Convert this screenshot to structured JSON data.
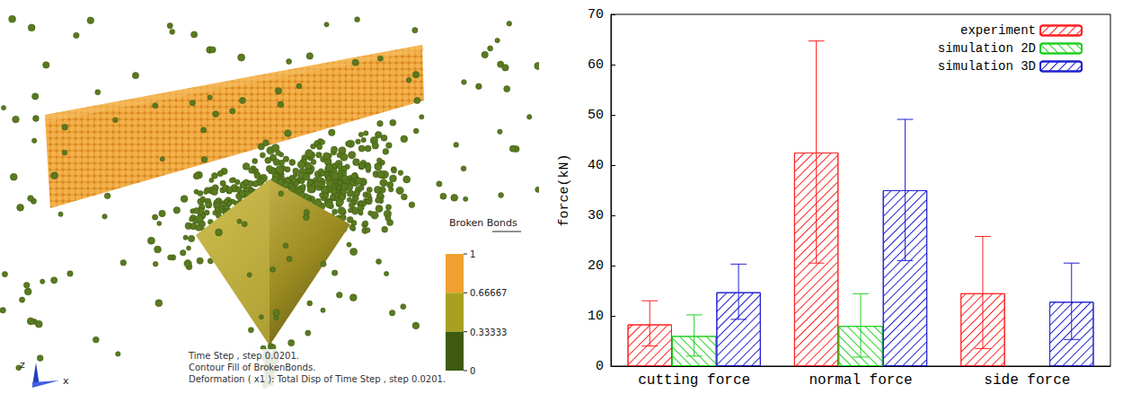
{
  "chart_data": {
    "type": "bar",
    "categories": [
      "cutting force",
      "normal force",
      "side force"
    ],
    "y_label": "force(kN)",
    "ylim": [
      0,
      70
    ],
    "yticks": [
      0,
      10,
      20,
      30,
      40,
      50,
      60,
      70
    ],
    "legend": "upper right",
    "series": [
      {
        "name": "experiment",
        "color": "#ff2020",
        "values": [
          8.3,
          42.5,
          14.5
        ],
        "error_low": [
          4.0,
          20.5,
          3.5
        ],
        "error_high": [
          13.0,
          64.7,
          25.8
        ]
      },
      {
        "name": "simulation 2D",
        "color": "#20d020",
        "values": [
          6.0,
          8.0,
          null
        ],
        "error_low": [
          2.0,
          1.8,
          null
        ],
        "error_high": [
          10.2,
          14.4,
          null
        ]
      },
      {
        "name": "simulation 3D",
        "color": "#2020d0",
        "values": [
          14.7,
          35.0,
          12.8
        ],
        "error_low": [
          9.3,
          21.0,
          5.3
        ],
        "error_high": [
          20.3,
          49.1,
          20.5
        ]
      }
    ]
  },
  "rendering": {
    "colorbar": {
      "title": "Broken Bonds",
      "ticks": [
        1,
        0.66667,
        0.33333,
        0
      ],
      "colors": [
        "#f0a030",
        "#a8a020",
        "#3d5a10"
      ]
    },
    "caption": [
      "Time Step , step 0.0201.",
      "Contour Fill of BrokenBonds.",
      "Deformation ( x1 ): Total Disp of Time Step , step 0.0201."
    ],
    "axis_labels": [
      "z",
      "x"
    ]
  }
}
